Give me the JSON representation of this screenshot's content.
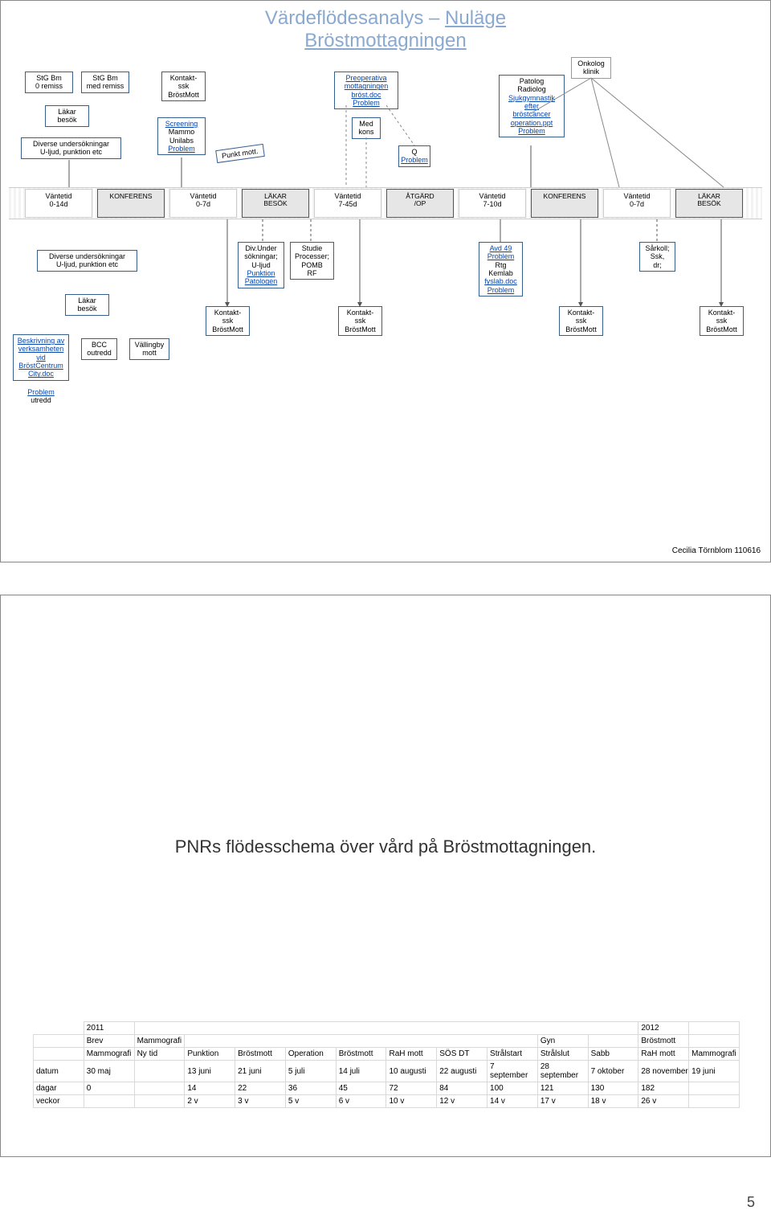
{
  "page_number": "5",
  "slide1": {
    "title_prefix": "Värdeflödesanalys – ",
    "title_link1": "Nuläge",
    "title_link2": "Bröstmottagningen",
    "onkolog": "Onkolog\nklinik",
    "top_boxes": {
      "stg_0remiss": "StG Bm\n0 remiss",
      "stg_medremiss": "StG Bm\nmed remiss",
      "kontakt_ssk": "Kontakt-\nssk\nBröstMott",
      "preop": "Preoperativa\nmottagningen\nbröst.doc",
      "preop_problem": "Problem",
      "patolog": "Patolog\nRadiolog\nSjukgymnastik\nefter\nbröstcancer\noperation.ppt\nProblem",
      "lakar": "Läkar\nbesök",
      "screening": "Screening\nMammo\nUnilabs\nProblem",
      "diverse": "Diverse undersökningar\nU-ljud, punktion etc",
      "medkons": "Med\nkons",
      "q_problem": "Q\nProblem",
      "punkt_mott": "Punkt mott."
    },
    "timeline": [
      {
        "type": "label",
        "text": "Väntetid\n0-14d"
      },
      {
        "type": "box",
        "text": "KONFERENS"
      },
      {
        "type": "label",
        "text": "Väntetid\n0-7d"
      },
      {
        "type": "box",
        "text": "LÄKAR\nBESÖK"
      },
      {
        "type": "label",
        "text": "Väntetid\n7-45d"
      },
      {
        "type": "box",
        "text": "ÅTGÄRD\n/OP"
      },
      {
        "type": "label",
        "text": "Väntetid\n7-10d"
      },
      {
        "type": "box",
        "text": "KONFERENS"
      },
      {
        "type": "label",
        "text": "Väntetid\n0-7d"
      },
      {
        "type": "box",
        "text": "LÄKAR\nBESÖK"
      }
    ],
    "bottom_boxes": {
      "diverse2": "Diverse undersökningar\nU-ljud, punktion etc",
      "divunder": "Div.Under\nsökningar;\nU-ljud\nPunktion\nPatologen",
      "studie": "Studie\nProcesser;\nPOMB\nRF",
      "avd49": "Avd 49\nProblem\nRtg\nKemlab\nfyslab.doc\nProblem",
      "sarkoll": "Sårkoll;\nSsk,\ndr;",
      "lakar2": "Läkar\nbesök",
      "kontakt1": "Kontakt-\nssk\nBröstMott",
      "kontakt2": "Kontakt-\nssk\nBröstMott",
      "kontakt3": "Kontakt-\nssk\nBröstMott",
      "kontakt4": "Kontakt-\nssk\nBröstMott",
      "beskrivning": "Beskrivning av\nverksamheten\nvid\nBröstCentrum\nCity.doc",
      "bcc": "BCC\noutredd",
      "vallingby": "Vällingby\nmott",
      "problem_utredd": "Problem\nutredd"
    },
    "credit": "Cecilia Törnblom 110616",
    "colors": {
      "title_color": "#8aa9d0",
      "box_border": "#365f91",
      "timeline_bg": "#e6e6e6",
      "link_color": "#0645ad"
    }
  },
  "slide2": {
    "caption": "PNRs flödesschema över vård på Bröstmottagningen.",
    "year_left": "2011",
    "year_right": "2012",
    "row2_left": "Brev",
    "row2_left2": "Mammografi",
    "row2_right_gyn": "Gyn",
    "row2_right_brost": "Bröstmott",
    "headers": [
      "Mammografi",
      "Ny tid",
      "Punktion",
      "Bröstmott",
      "Operation",
      "Bröstmott",
      "RaH mott",
      "SÖS DT",
      "Strålstart",
      "Strålslut",
      "Sabb",
      "RaH mott",
      "Mammografi"
    ],
    "rows": {
      "datum_label": "datum",
      "datum": [
        "30 maj",
        "",
        "13 juni",
        "21 juni",
        "5 juli",
        "14 juli",
        "10 augusti",
        "22 augusti",
        "7\nseptember",
        "28\nseptember",
        "7 oktober",
        "28 november",
        "19 juni"
      ],
      "dagar_label": "dagar",
      "dagar": [
        "0",
        "",
        "14",
        "22",
        "36",
        "45",
        "72",
        "84",
        "100",
        "121",
        "130",
        "182",
        ""
      ],
      "veckor_label": "veckor",
      "veckor": [
        "",
        "",
        "2 v",
        "3 v",
        "5 v",
        "6 v",
        "10 v",
        "12 v",
        "14 v",
        "17 v",
        "18 v",
        "26 v",
        ""
      ]
    }
  }
}
